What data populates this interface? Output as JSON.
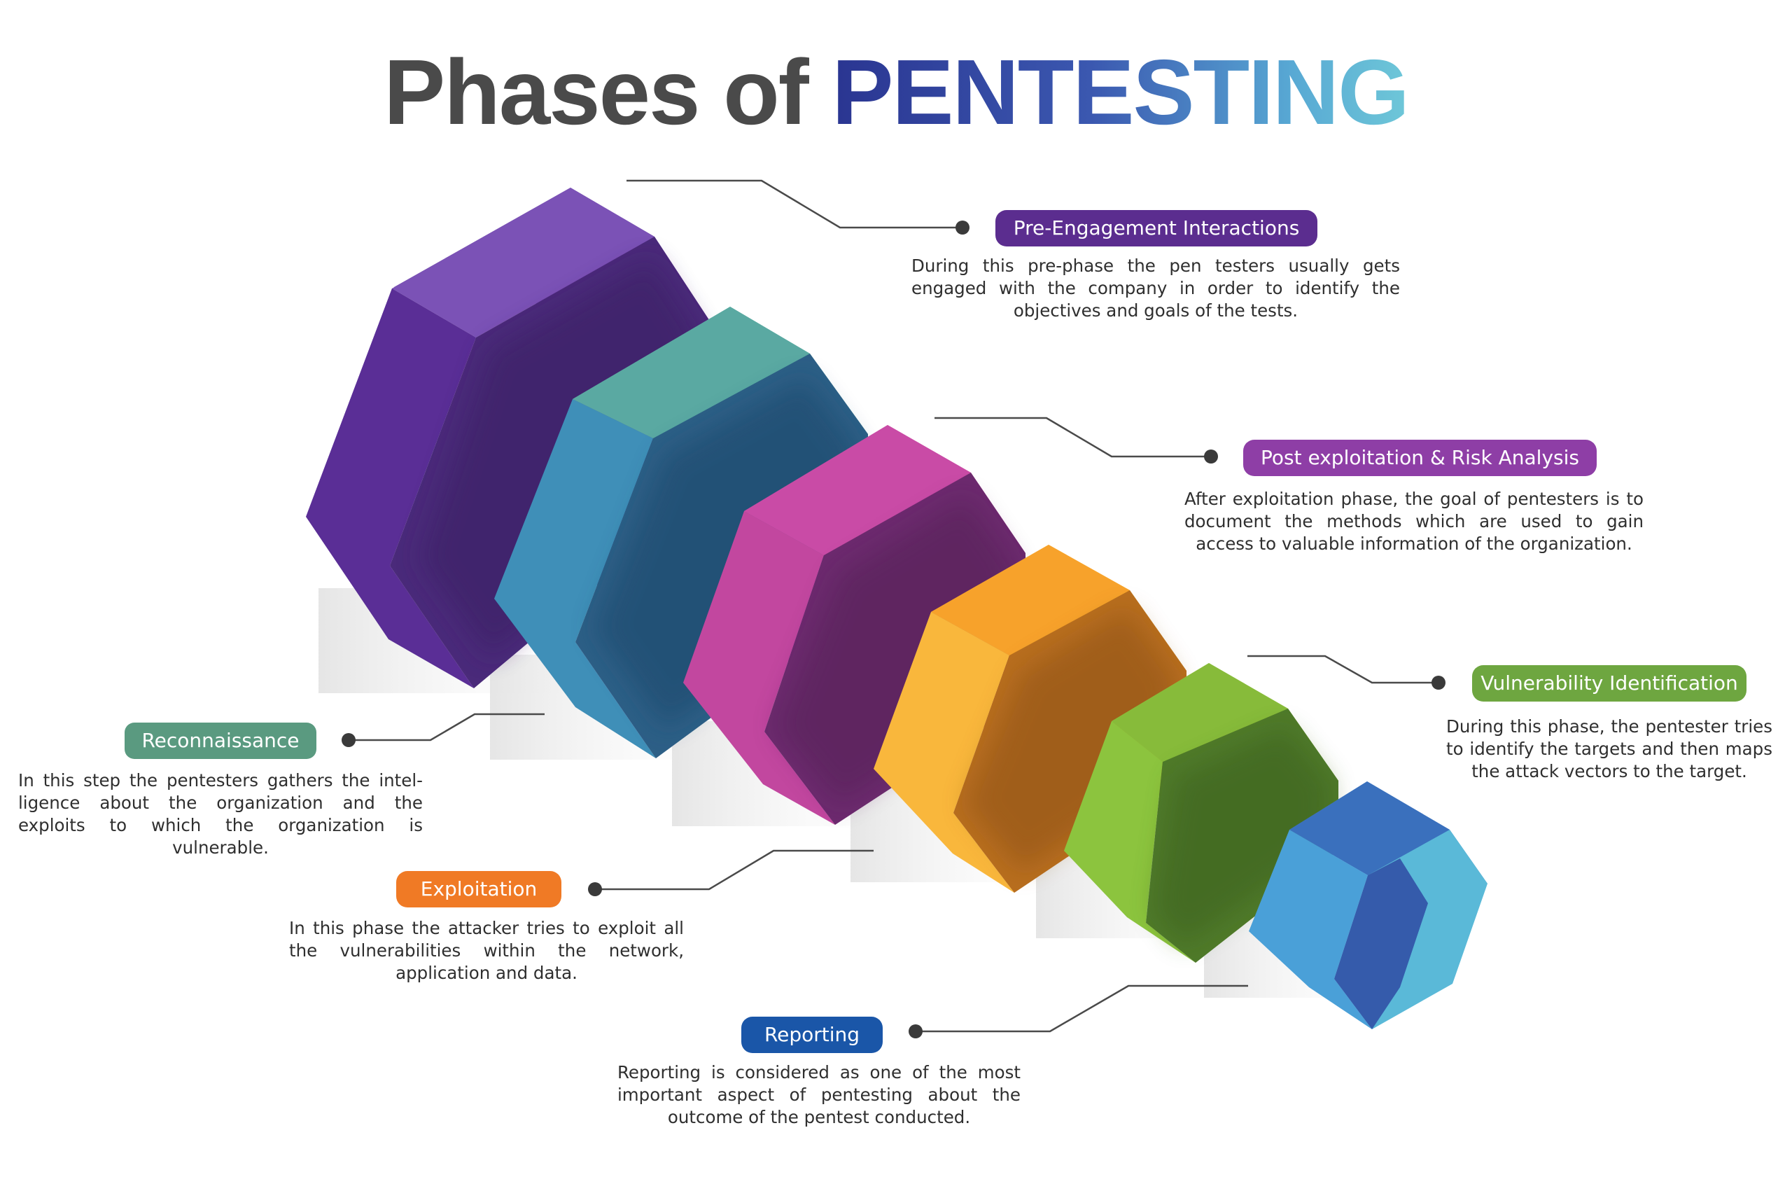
{
  "title": {
    "part1": "Phases of ",
    "part2": "PENTESTING"
  },
  "colors": {
    "purple": "#5b2f9a",
    "teal_blue": "#3f86b4",
    "magenta": "#b0379c",
    "orange": "#f5a623",
    "green": "#78b136",
    "blue": "#3a6fbd"
  },
  "phases": [
    {
      "label": "Pre-Engagement Interactions",
      "text": "During this pre-phase the pen testers usually gets engaged with the company in order to identify the objectives and goals of the tests.",
      "color": "#5b2d8f"
    },
    {
      "label": "Post exploitation & Risk Analysis",
      "text": "After exploitation phase, the goal of pentesters is to document the methods which are used to gain access to valuable information of the organization.",
      "color": "#8e3ea6"
    },
    {
      "label": "Vulnerability Identification",
      "text": "During this phase, the pentester tries to identify the targets and then maps the attack vectors to the target.",
      "color": "#6ea640"
    },
    {
      "label": "Reconnaissance",
      "text": "In this step the pentesters gathers the intel-ligence about the organization and the exploits to which the organization is vulnerable.",
      "color": "#5a9a80"
    },
    {
      "label": "Exploitation",
      "text": "In this phase the attacker tries to exploit all the vulnerabilities within the network, application and data.",
      "color": "#f07a25"
    },
    {
      "label": "Reporting",
      "text": "Reporting is considered as one of the most important aspect of pentesting about the outcome of the pentest conducted.",
      "color": "#1a56a8"
    }
  ]
}
